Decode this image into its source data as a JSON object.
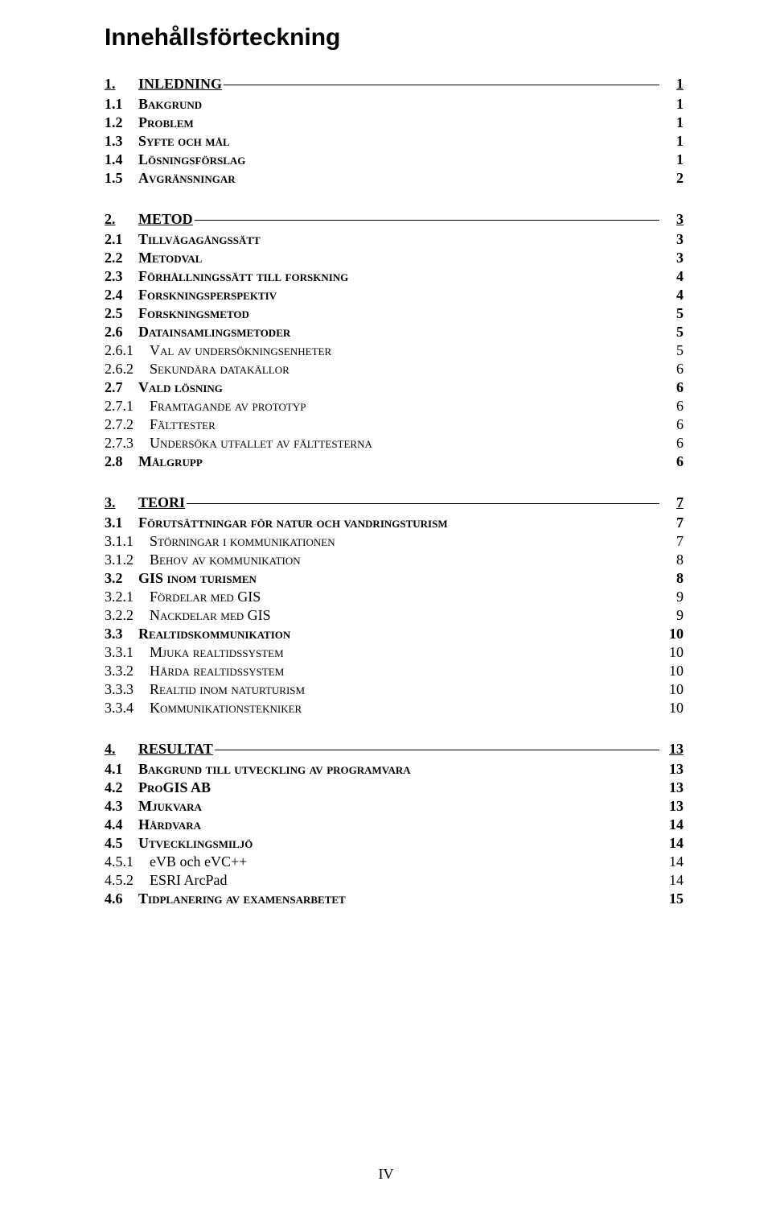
{
  "title": "Innehållsförteckning",
  "footer": "IV",
  "colors": {
    "text": "#000000",
    "background": "#ffffff"
  },
  "typography": {
    "body_family": "Times New Roman",
    "title_family": "Arial",
    "body_size_pt": 13,
    "title_size_pt": 22
  },
  "toc": [
    {
      "level": 1,
      "num": "1.",
      "text": "INLEDNING",
      "page": "1"
    },
    {
      "level": 2,
      "num": "1.1",
      "text": "Bakgrund",
      "page": "1"
    },
    {
      "level": 2,
      "num": "1.2",
      "text": "Problem",
      "page": "1"
    },
    {
      "level": 2,
      "num": "1.3",
      "text": "Syfte och mål",
      "page": "1"
    },
    {
      "level": 2,
      "num": "1.4",
      "text": "Lösningsförslag",
      "page": "1"
    },
    {
      "level": 2,
      "num": "1.5",
      "text": "Avgränsningar",
      "page": "2"
    },
    {
      "level": 1,
      "num": "2.",
      "text": "METOD",
      "page": "3"
    },
    {
      "level": 2,
      "num": "2.1",
      "text": "Tillvägagångssätt",
      "page": "3"
    },
    {
      "level": 2,
      "num": "2.2",
      "text": "Metodval",
      "page": "3"
    },
    {
      "level": 2,
      "num": "2.3",
      "text": "Förhållningssätt till forskning",
      "page": "4"
    },
    {
      "level": 2,
      "num": "2.4",
      "text": "Forskningsperspektiv",
      "page": "4"
    },
    {
      "level": 2,
      "num": "2.5",
      "text": "Forskningsmetod",
      "page": "5"
    },
    {
      "level": 2,
      "num": "2.6",
      "text": "Datainsamlingsmetoder",
      "page": "5"
    },
    {
      "level": 3,
      "num": "2.6.1",
      "text": "Val av undersökningsenheter",
      "page": "5"
    },
    {
      "level": 3,
      "num": "2.6.2",
      "text": "Sekundära datakällor",
      "page": "6"
    },
    {
      "level": 2,
      "num": "2.7",
      "text": "Vald lösning",
      "page": "6"
    },
    {
      "level": 3,
      "num": "2.7.1",
      "text": "Framtagande av prototyp",
      "page": "6"
    },
    {
      "level": 3,
      "num": "2.7.2",
      "text": "Fälttester",
      "page": "6"
    },
    {
      "level": 3,
      "num": "2.7.3",
      "text": "Undersöka utfallet av fälttesterna",
      "page": "6"
    },
    {
      "level": 2,
      "num": "2.8",
      "text": "Målgrupp",
      "page": "6"
    },
    {
      "level": 1,
      "num": "3.",
      "text": "TEORI",
      "page": "7"
    },
    {
      "level": 2,
      "num": "3.1",
      "text": "Förutsättningar för natur och vandringsturism",
      "page": "7"
    },
    {
      "level": 3,
      "num": "3.1.1",
      "text": "Störningar i kommunikationen",
      "page": "7"
    },
    {
      "level": 3,
      "num": "3.1.2",
      "text": "Behov av kommunikation",
      "page": "8"
    },
    {
      "level": 2,
      "num": "3.2",
      "text": "GIS inom turismen",
      "page": "8"
    },
    {
      "level": 3,
      "num": "3.2.1",
      "text": "Fördelar med GIS",
      "page": "9"
    },
    {
      "level": 3,
      "num": "3.2.2",
      "text": "Nackdelar med GIS",
      "page": "9"
    },
    {
      "level": 2,
      "num": "3.3",
      "text": "Realtidskommunikation",
      "page": "10"
    },
    {
      "level": 3,
      "num": "3.3.1",
      "text": "Mjuka realtidssystem",
      "page": "10"
    },
    {
      "level": 3,
      "num": "3.3.2",
      "text": "Hårda realtidssystem",
      "page": "10"
    },
    {
      "level": 3,
      "num": "3.3.3",
      "text": "Realtid inom naturturism",
      "page": "10"
    },
    {
      "level": 3,
      "num": "3.3.4",
      "text": "Kommunikationstekniker",
      "page": "10"
    },
    {
      "level": 1,
      "num": "4.",
      "text": "RESULTAT",
      "page": "13"
    },
    {
      "level": 2,
      "num": "4.1",
      "text": "Bakgrund till utveckling av programvara",
      "page": "13"
    },
    {
      "level": 2,
      "num": "4.2",
      "text": "ProGIS AB",
      "page": "13"
    },
    {
      "level": 2,
      "num": "4.3",
      "text": "Mjukvara",
      "page": "13"
    },
    {
      "level": 2,
      "num": "4.4",
      "text": "Hårdvara",
      "page": "14"
    },
    {
      "level": 2,
      "num": "4.5",
      "text": "Utvecklingsmiljö",
      "page": "14"
    },
    {
      "level": 3,
      "num": "4.5.1",
      "text": "eVB och eVC++",
      "page": "14",
      "no_smallcaps": true
    },
    {
      "level": 3,
      "num": "4.5.2",
      "text": "ESRI ArcPad",
      "page": "14",
      "no_smallcaps": true
    },
    {
      "level": 2,
      "num": "4.6",
      "text": "Tidplanering av examensarbetet",
      "page": "15"
    }
  ]
}
